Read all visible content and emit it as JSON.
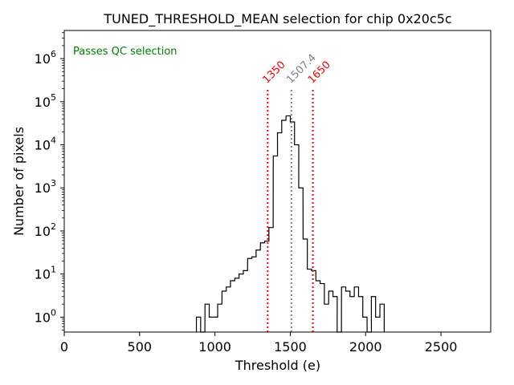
{
  "chart_data": {
    "type": "histogram",
    "title": "TUNED_THRESHOLD_MEAN selection for chip 0x20c5c",
    "xlabel": "Threshold (e)",
    "ylabel": "Number of pixels",
    "xlim": [
      0,
      2830
    ],
    "ylim": [
      0.45,
      4500000
    ],
    "yscale": "log",
    "x_ticks": [
      "0",
      "500",
      "1000",
      "1500",
      "2000",
      "2500"
    ],
    "x_tick_values": [
      0,
      500,
      1000,
      1500,
      2000,
      2500
    ],
    "y_tick_exponents": [
      0,
      1,
      2,
      3,
      4,
      5,
      6
    ],
    "y_tick_base": "10",
    "annotation": {
      "text": "Passes QC selection",
      "color": "#008000"
    },
    "lines": [
      {
        "x": 1350,
        "label": "1350",
        "color": "#ff0000"
      },
      {
        "x": 1507.4,
        "label": "1507.4",
        "color": "#808080"
      },
      {
        "x": 1650,
        "label": "1650",
        "color": "#ff0000"
      }
    ],
    "bin_width": 28.3,
    "bins": [
      [
        877,
        1
      ],
      [
        905,
        0
      ],
      [
        934,
        2
      ],
      [
        962,
        1
      ],
      [
        990,
        1
      ],
      [
        1018,
        2
      ],
      [
        1047,
        4
      ],
      [
        1075,
        5
      ],
      [
        1103,
        7
      ],
      [
        1132,
        8
      ],
      [
        1160,
        10
      ],
      [
        1188,
        12
      ],
      [
        1217,
        23
      ],
      [
        1245,
        25
      ],
      [
        1273,
        36
      ],
      [
        1302,
        53
      ],
      [
        1330,
        58
      ],
      [
        1358,
        120
      ],
      [
        1387,
        5500
      ],
      [
        1415,
        19000
      ],
      [
        1443,
        37000
      ],
      [
        1472,
        47000
      ],
      [
        1500,
        34000
      ],
      [
        1528,
        10000
      ],
      [
        1556,
        1000
      ],
      [
        1585,
        65
      ],
      [
        1613,
        13
      ],
      [
        1641,
        12
      ],
      [
        1670,
        7
      ],
      [
        1698,
        6
      ],
      [
        1726,
        2
      ],
      [
        1755,
        4
      ],
      [
        1783,
        3
      ],
      [
        1811,
        0
      ],
      [
        1840,
        5
      ],
      [
        1868,
        4
      ],
      [
        1896,
        3
      ],
      [
        1925,
        5
      ],
      [
        1953,
        3
      ],
      [
        1981,
        1
      ],
      [
        2010,
        0
      ],
      [
        2038,
        3
      ],
      [
        2066,
        1
      ],
      [
        2095,
        2
      ]
    ]
  }
}
